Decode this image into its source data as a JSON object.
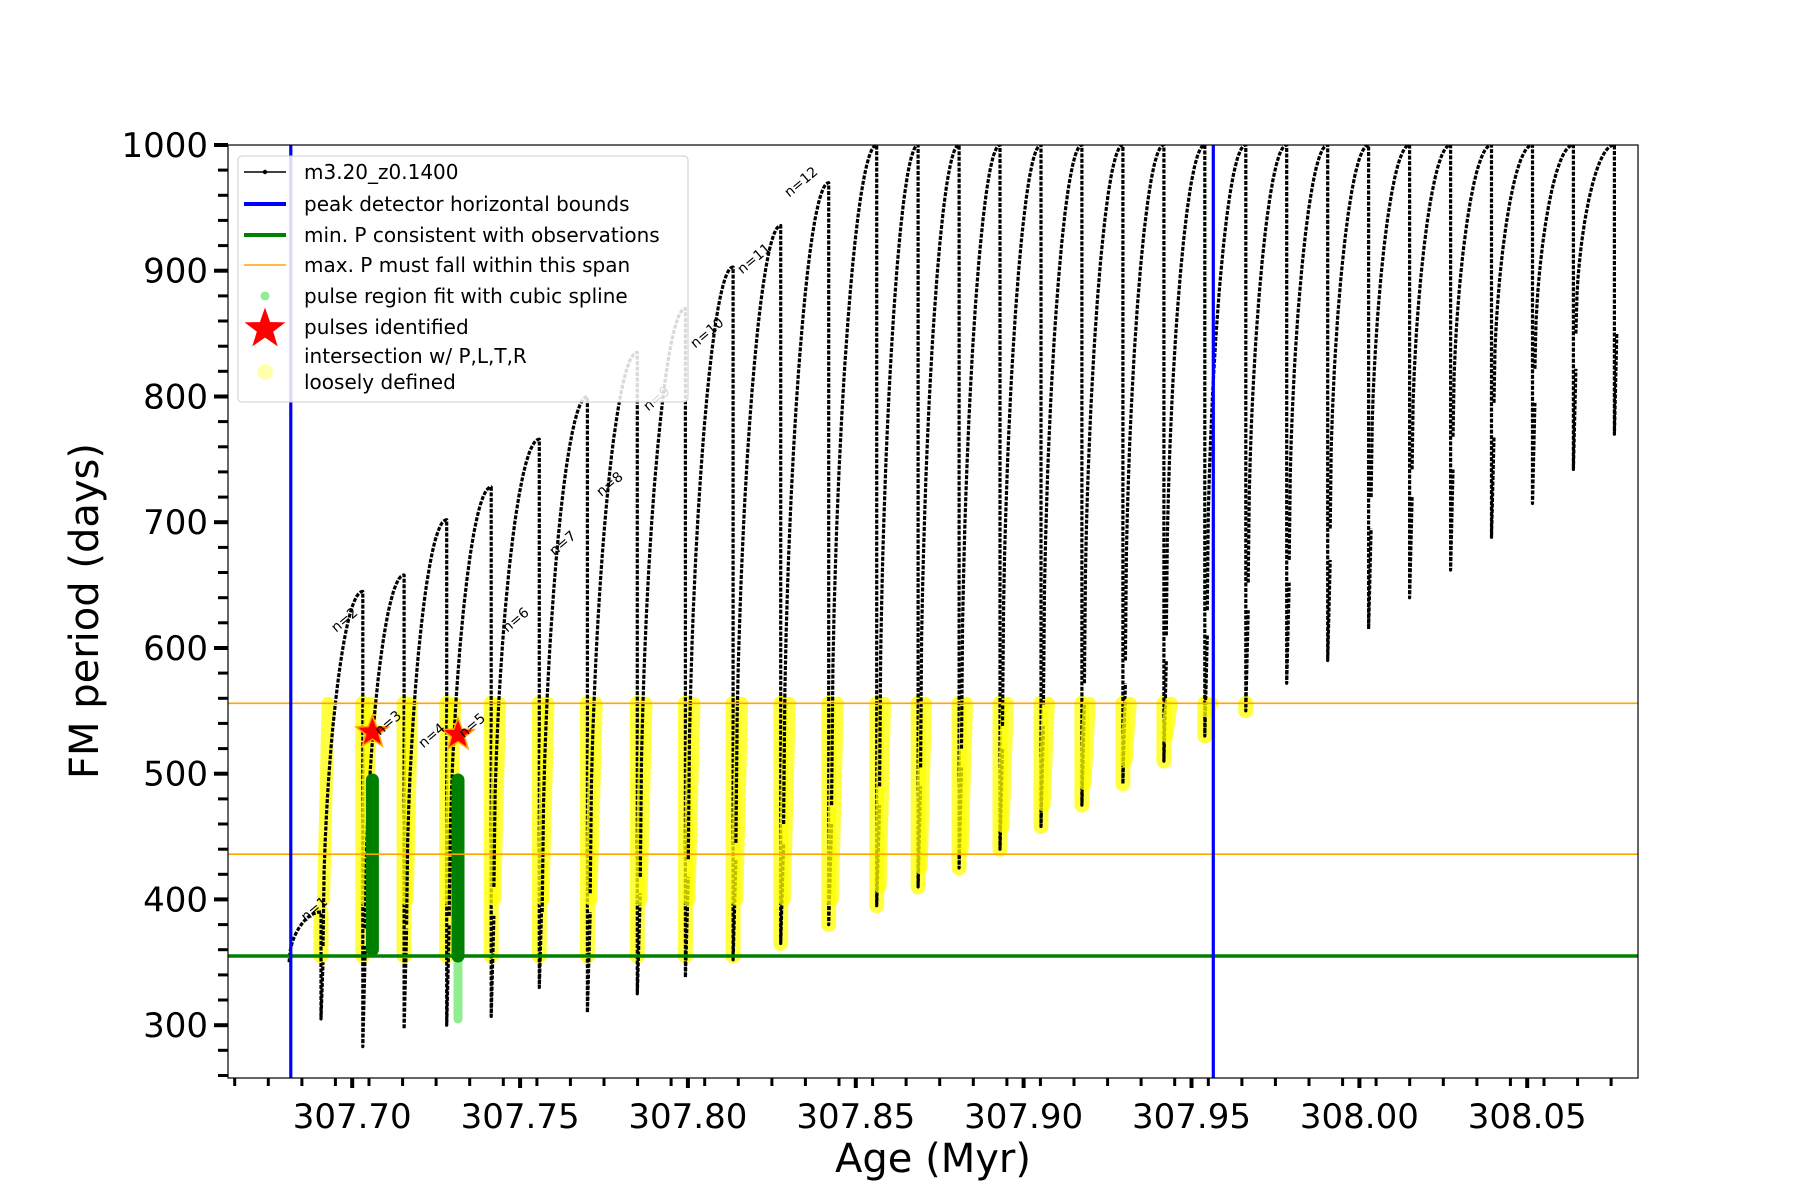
{
  "chart_data": {
    "type": "line",
    "xlabel": "Age (Myr)",
    "ylabel": "FM period (days)",
    "xlim": [
      307.663,
      308.083
    ],
    "ylim": [
      258,
      1000
    ],
    "xticks": [
      307.7,
      307.75,
      307.8,
      307.85,
      307.9,
      307.95,
      308.0,
      308.05
    ],
    "xtick_labels": [
      "307.70",
      "307.75",
      "307.80",
      "307.85",
      "307.90",
      "307.95",
      "308.00",
      "308.05"
    ],
    "yticks": [
      300,
      400,
      500,
      600,
      700,
      800,
      900,
      1000
    ],
    "ytick_labels": [
      "300",
      "400",
      "500",
      "600",
      "700",
      "800",
      "900",
      "1000"
    ],
    "grid": false,
    "legend_position": "top-left",
    "legend": [
      {
        "label": "m3.20_z0.1400",
        "style": "line-marker",
        "color": "#000000"
      },
      {
        "label": "peak detector horizontal bounds",
        "style": "thick-line",
        "color": "#0000ff"
      },
      {
        "label": "min. P consistent with observations",
        "style": "thick-line",
        "color": "#008000"
      },
      {
        "label": "max. P must fall within this span",
        "style": "thin-line",
        "color": "#ffa500"
      },
      {
        "label": "pulse region fit with cubic spline",
        "style": "dot",
        "color": "#90ee90"
      },
      {
        "label": "pulses identified",
        "style": "star",
        "color": "#ff0000"
      },
      {
        "label": "intersection w/ P,L,T,R\nloosely defined",
        "style": "circle",
        "color": "#ffff99"
      }
    ],
    "vlines": [
      {
        "x": 307.6817,
        "color": "#0000ff"
      },
      {
        "x": 307.9565,
        "color": "#0000ff"
      }
    ],
    "hlines": [
      {
        "y": 355,
        "color": "#008000",
        "width": "thick"
      },
      {
        "y": 436,
        "color": "#ffa500",
        "width": "thin"
      },
      {
        "y": 556,
        "color": "#ffa500",
        "width": "thin"
      }
    ],
    "pulses": [
      {
        "start": 307.6812,
        "end": 307.6913,
        "min": 305,
        "peak": 390
      },
      {
        "start": 307.6913,
        "end": 307.7039,
        "min": 283,
        "peak": 645
      },
      {
        "start": 307.7039,
        "end": 307.7162,
        "min": 297,
        "peak": 658
      },
      {
        "start": 307.7162,
        "end": 307.7289,
        "min": 300,
        "peak": 702
      },
      {
        "start": 307.7289,
        "end": 307.7422,
        "min": 307,
        "peak": 728
      },
      {
        "start": 307.7422,
        "end": 307.7566,
        "min": 330,
        "peak": 766
      },
      {
        "start": 307.7566,
        "end": 307.7709,
        "min": 310,
        "peak": 800
      },
      {
        "start": 307.7709,
        "end": 307.7858,
        "min": 325,
        "peak": 835
      },
      {
        "start": 307.7858,
        "end": 307.8001,
        "min": 338,
        "peak": 870
      },
      {
        "start": 307.8001,
        "end": 307.8143,
        "min": 352,
        "peak": 903
      },
      {
        "start": 307.8143,
        "end": 307.8285,
        "min": 365,
        "peak": 936
      },
      {
        "start": 307.8285,
        "end": 307.8428,
        "min": 380,
        "peak": 970
      },
      {
        "start": 307.8428,
        "end": 307.8571,
        "min": 395,
        "peak": 1000
      },
      {
        "start": 307.8571,
        "end": 307.8693,
        "min": 410,
        "peak": 1000
      },
      {
        "start": 307.8693,
        "end": 307.8815,
        "min": 425,
        "peak": 1000
      },
      {
        "start": 307.8815,
        "end": 307.8937,
        "min": 440,
        "peak": 1000
      },
      {
        "start": 307.8937,
        "end": 307.9059,
        "min": 458,
        "peak": 1000
      },
      {
        "start": 307.9059,
        "end": 307.9181,
        "min": 475,
        "peak": 1000
      },
      {
        "start": 307.9181,
        "end": 307.9303,
        "min": 492,
        "peak": 1000
      },
      {
        "start": 307.9303,
        "end": 307.9425,
        "min": 510,
        "peak": 1000
      },
      {
        "start": 307.9425,
        "end": 307.9547,
        "min": 530,
        "peak": 1000
      },
      {
        "start": 307.9547,
        "end": 307.9669,
        "min": 550,
        "peak": 1000
      },
      {
        "start": 307.9669,
        "end": 307.9791,
        "min": 572,
        "peak": 1000
      },
      {
        "start": 307.9791,
        "end": 307.9913,
        "min": 590,
        "peak": 1000
      },
      {
        "start": 307.9913,
        "end": 308.0035,
        "min": 615,
        "peak": 1000
      },
      {
        "start": 308.0035,
        "end": 308.0157,
        "min": 640,
        "peak": 1000
      },
      {
        "start": 308.0157,
        "end": 308.0279,
        "min": 662,
        "peak": 1000
      },
      {
        "start": 308.0279,
        "end": 308.0401,
        "min": 688,
        "peak": 1000
      },
      {
        "start": 308.0401,
        "end": 308.0523,
        "min": 715,
        "peak": 1000
      },
      {
        "start": 308.0523,
        "end": 308.0645,
        "min": 742,
        "peak": 1000
      },
      {
        "start": 308.0645,
        "end": 308.0767,
        "min": 770,
        "peak": 1000
      }
    ],
    "pulse_labels": [
      {
        "text": "n=1",
        "x": 307.6862,
        "y": 382
      },
      {
        "text": "n=2",
        "x": 307.6952,
        "y": 612
      },
      {
        "text": "n=3",
        "x": 307.7082,
        "y": 530
      },
      {
        "text": "n=4",
        "x": 307.7212,
        "y": 520
      },
      {
        "text": "n=5",
        "x": 307.7332,
        "y": 528
      },
      {
        "text": "n=6",
        "x": 307.7462,
        "y": 612
      },
      {
        "text": "n=7",
        "x": 307.7602,
        "y": 673
      },
      {
        "text": "n=8",
        "x": 307.7742,
        "y": 720
      },
      {
        "text": "n=9",
        "x": 307.7882,
        "y": 788
      },
      {
        "text": "n=10",
        "x": 307.8022,
        "y": 838
      },
      {
        "text": "n=11",
        "x": 307.8162,
        "y": 897
      },
      {
        "text": "n=12",
        "x": 307.8302,
        "y": 958
      }
    ],
    "identified_pulses": [
      {
        "label": "n=3",
        "x": 307.706,
        "y": 533
      },
      {
        "label": "n=5",
        "x": 307.7315,
        "y": 531
      }
    ],
    "spline_fit_regions": [
      {
        "x": 307.706,
        "ymin": 360,
        "ymax": 495
      },
      {
        "x": 307.7315,
        "ymin": 305,
        "ymax": 495
      }
    ],
    "colors": {
      "track": "#000000",
      "bounds": "#0000ff",
      "min_p": "#008000",
      "max_p_span": "#ffa500",
      "spline": "#90ee90",
      "spline_dark": "#008000",
      "stars": "#ff0000",
      "star_edge": "#ffa500",
      "loose": "#ffff00"
    }
  }
}
